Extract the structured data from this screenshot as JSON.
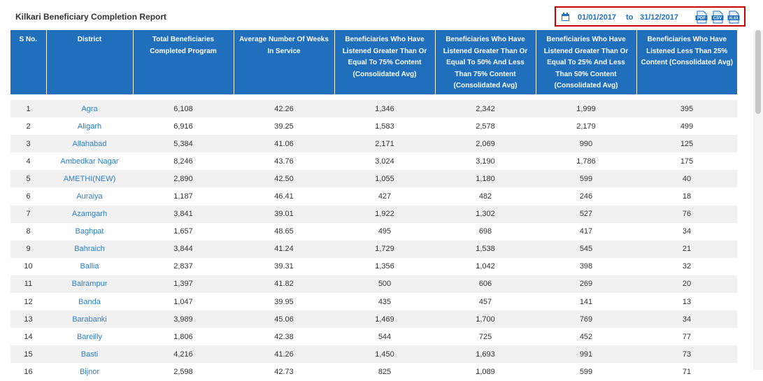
{
  "report": {
    "title": "Kilkari Beneficiary Completion Report",
    "date_from": "01/01/2017",
    "date_separator": "to",
    "date_to": "31/12/2017",
    "exports": [
      {
        "name": "pdf",
        "label": "PDF"
      },
      {
        "name": "csv",
        "label": "CSV"
      },
      {
        "name": "xlsx",
        "label": "XLSX"
      }
    ]
  },
  "table": {
    "columns": [
      "S No.",
      "District",
      "Total Beneficiaries Completed Program",
      "Average Number Of Weeks In Service",
      "Beneficiaries Who Have Listened Greater Than Or Equal To 75% Content (Consolidated Avg)",
      "Beneficiaries Who Have Listened Greater Than Or Equal To 50% And Less Than 75% Content (Consolidated Avg)",
      "Beneficiaries Who Have Listened Greater Than Or Equal To 25% And Less Than 50% Content (Consolidated Avg)",
      "Beneficiaries Who Have Listened Less Than 25% Content (Consolidated Avg)"
    ],
    "rows": [
      [
        "1",
        "Agra",
        "6,108",
        "42.26",
        "1,346",
        "2,342",
        "1,999",
        "395"
      ],
      [
        "2",
        "Aligarh",
        "6,916",
        "39.25",
        "1,583",
        "2,578",
        "2,179",
        "499"
      ],
      [
        "3",
        "Allahabad",
        "5,384",
        "41.06",
        "2,171",
        "2,069",
        "990",
        "125"
      ],
      [
        "4",
        "Ambedkar Nagar",
        "8,246",
        "43.76",
        "3,024",
        "3,190",
        "1,786",
        "175"
      ],
      [
        "5",
        "AMETHI(NEW)",
        "2,890",
        "42.50",
        "1,055",
        "1,180",
        "599",
        "40"
      ],
      [
        "6",
        "Auraiya",
        "1,187",
        "46.41",
        "427",
        "482",
        "246",
        "18"
      ],
      [
        "7",
        "Azamgarh",
        "3,841",
        "39.01",
        "1,922",
        "1,302",
        "527",
        "76"
      ],
      [
        "8",
        "Baghpat",
        "1,657",
        "48.65",
        "495",
        "698",
        "417",
        "34"
      ],
      [
        "9",
        "Bahraich",
        "3,844",
        "41.24",
        "1,729",
        "1,538",
        "545",
        "21"
      ],
      [
        "10",
        "Ballia",
        "2,837",
        "39.31",
        "1,356",
        "1,042",
        "398",
        "32"
      ],
      [
        "11",
        "Balrampur",
        "1,397",
        "41.82",
        "500",
        "606",
        "269",
        "20"
      ],
      [
        "12",
        "Banda",
        "1,047",
        "39.95",
        "435",
        "457",
        "141",
        "13"
      ],
      [
        "13",
        "Barabanki",
        "3,989",
        "45.06",
        "1,469",
        "1,700",
        "769",
        "34"
      ],
      [
        "14",
        "Bareilly",
        "1,806",
        "42.38",
        "544",
        "725",
        "452",
        "77"
      ],
      [
        "15",
        "Basti",
        "4,216",
        "41.26",
        "1,450",
        "1,693",
        "991",
        "73"
      ],
      [
        "16",
        "Bijnor",
        "2,598",
        "42.73",
        "825",
        "1,089",
        "599",
        "71"
      ]
    ]
  },
  "colors": {
    "header": "#1f6fbd",
    "link": "#2a7fc9",
    "highlight": "#cc0000"
  }
}
